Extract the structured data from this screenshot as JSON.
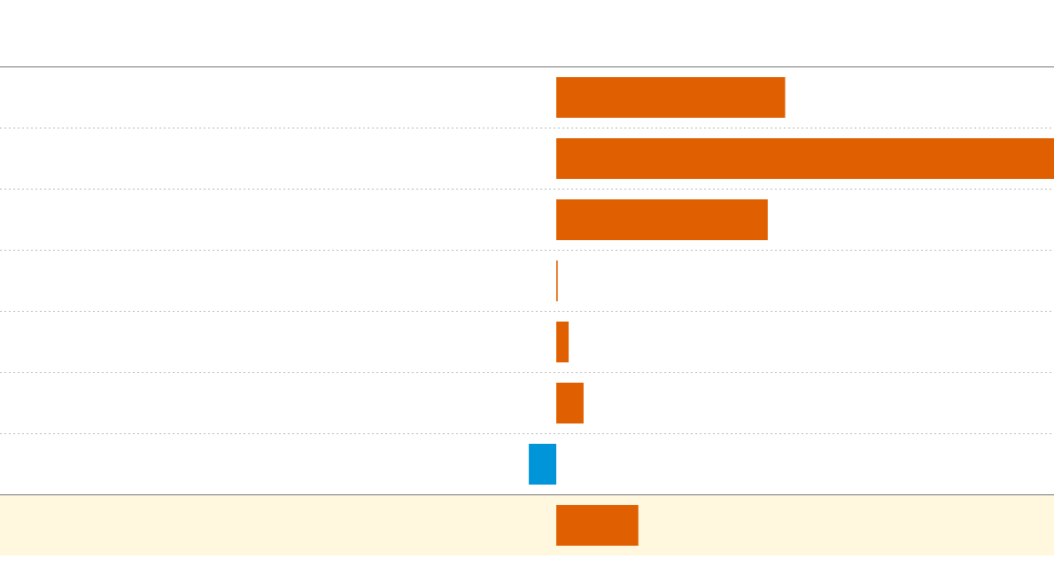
{
  "chart_data": {
    "type": "bar",
    "orientation": "horizontal",
    "categories": [
      "",
      "",
      "",
      "",
      "",
      "",
      "",
      ""
    ],
    "values": [
      46,
      100,
      42.5,
      0.3,
      2.5,
      5.5,
      -5.5,
      16.5
    ],
    "highlighted_row": 7,
    "xlim": [
      -111.5,
      100
    ],
    "title": "",
    "xlabel": "",
    "ylabel": "",
    "grid": true,
    "colors": {
      "positive": "#e05f00",
      "negative": "#0095d9",
      "highlight_background": "#fff8df",
      "axis_line": "#777777",
      "gridline": "#bbbbbb"
    }
  }
}
